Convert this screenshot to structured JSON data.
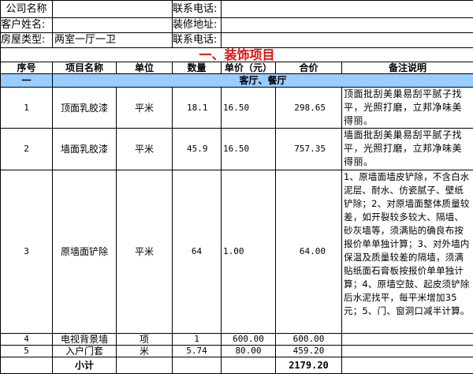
{
  "info": {
    "company_label": "公司名称",
    "company_value": "",
    "phone1_label": "联系电话:",
    "phone1_value": "",
    "customer_label": "客户姓名:",
    "customer_value": "",
    "address_label": "装修地址:",
    "address_value": "",
    "house_label": "房屋类型:",
    "house_value": "两室一厅一卫",
    "phone2_label": "联系电话:",
    "phone2_value": ""
  },
  "section_title": "一、装饰项目",
  "columns": [
    "序号",
    "项目名称",
    "单位",
    "数量",
    "单价（元）",
    "合价",
    "备注说明"
  ],
  "group": {
    "index": "一",
    "name": "客厅、餐厅"
  },
  "rows": [
    {
      "no": "1",
      "name": "顶面乳胶漆",
      "unit": "平米",
      "qty": "18.1",
      "price": "16.50",
      "total": "298.65",
      "note": "顶面批刮美巢易刮平腻子找平，光照打磨，立邦净味美得丽。"
    },
    {
      "no": "2",
      "name": "墙面乳胶漆",
      "unit": "平米",
      "qty": "45.9",
      "price": "16.50",
      "total": "757.35",
      "note": "墙面批刮美巢易刮平腻子找平，光照打磨，立邦净味美得丽。"
    },
    {
      "no": "3",
      "name": "原墙面铲除",
      "unit": "平米",
      "qty": "64",
      "price": "1.00",
      "total": "64.00",
      "note": "1、原墙面墙皮铲除，不含白水泥层、耐水、仿瓷腻子、壁纸铲除；2、对原墙面整体质量较差，如开裂较多较大、隔墙、砂灰墙等，须满贴的确良布按报价单单独计算；3、对外墙内保温及质量较差的隔墙，须满贴纸面石膏板按报价单单独计算；4、原墙空鼓、起皮须铲除后水泥找平，每平米增加35元；5、门、窗洞口减半计算。"
    },
    {
      "no": "4",
      "name": "电视背景墙",
      "unit": "项",
      "qty": "1",
      "price": "600.00",
      "total": "600.00",
      "note": ""
    },
    {
      "no": "5",
      "name": "入户门套",
      "unit": "米",
      "qty": "5.74",
      "price": "80.00",
      "total": "459.20",
      "note": ""
    }
  ],
  "subtotal": {
    "label": "小计",
    "value": "2179.20"
  },
  "colors": {
    "group_bg": "#99ccff",
    "title": "#e01010"
  }
}
